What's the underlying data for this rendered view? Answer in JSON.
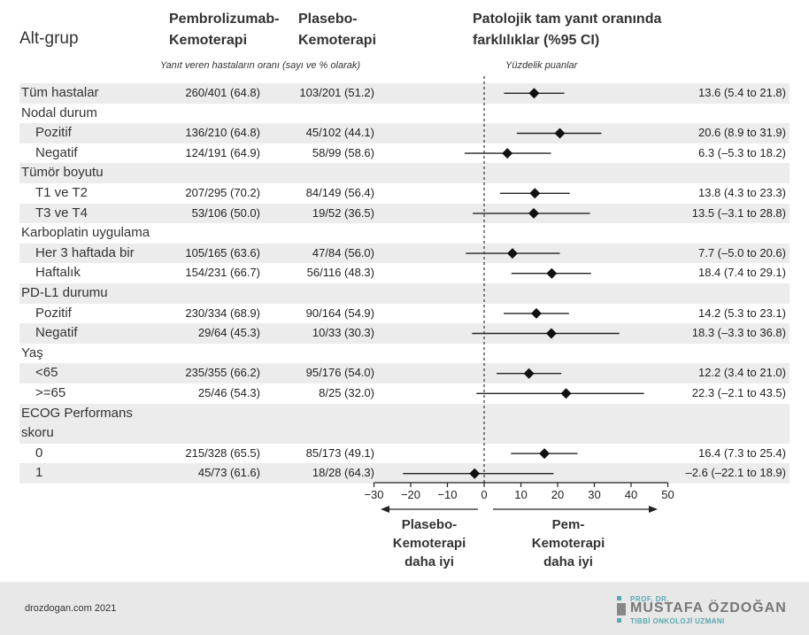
{
  "headers": {
    "subgroup": "Alt-grup",
    "pem_line1": "Pembrolizumab-",
    "pem_line2": "Kemoterapi",
    "pla_line1": "Plasebo-",
    "pla_line2": "Kemoterapi",
    "ci_line1": "Patolojik tam yanıt oranında",
    "ci_line2": "farklılıklar (%95 CI)",
    "sub_left": "Yanıt veren hastaların oranı (sayı ve % olarak)",
    "sub_right": "Yüzdelik puanlar"
  },
  "chart_data": {
    "type": "forest",
    "xlim": [
      -30,
      50
    ],
    "xticks": [
      -30,
      -20,
      -10,
      0,
      10,
      20,
      30,
      40,
      50
    ],
    "reference_line": 0,
    "rows": [
      {
        "label": "Tüm hastalar",
        "pem": "260/401 (64.8)",
        "pla": "103/201 (51.2)",
        "diff": 13.6,
        "lo": 5.4,
        "hi": 21.8,
        "ci_text": "13.6 (5.4 to 21.8)",
        "shaded": true,
        "indent": false
      },
      {
        "label": "Nodal durum",
        "header": true,
        "shaded": false,
        "indent": false
      },
      {
        "label": "Pozitif",
        "pem": "136/210 (64.8)",
        "pla": "45/102 (44.1)",
        "diff": 20.6,
        "lo": 8.9,
        "hi": 31.9,
        "ci_text": "20.6 (8.9 to 31.9)",
        "shaded": true,
        "indent": true
      },
      {
        "label": "Negatif",
        "pem": "124/191 (64.9)",
        "pla": "58/99 (58.6)",
        "diff": 6.3,
        "lo": -5.3,
        "hi": 18.2,
        "ci_text": "6.3 (–5.3 to 18.2)",
        "shaded": false,
        "indent": true
      },
      {
        "label": "Tümör boyutu",
        "header": true,
        "shaded": true,
        "indent": false
      },
      {
        "label": "T1 ve T2",
        "pem": "207/295 (70.2)",
        "pla": "84/149 (56.4)",
        "diff": 13.8,
        "lo": 4.3,
        "hi": 23.3,
        "ci_text": "13.8 (4.3 to 23.3)",
        "shaded": false,
        "indent": true
      },
      {
        "label": "T3 ve T4",
        "pem": "53/106 (50.0)",
        "pla": "19/52 (36.5)",
        "diff": 13.5,
        "lo": -3.1,
        "hi": 28.8,
        "ci_text": "13.5 (–3.1 to 28.8)",
        "shaded": true,
        "indent": true
      },
      {
        "label": "Karboplatin uygulama",
        "header": true,
        "shaded": false,
        "indent": false
      },
      {
        "label": "Her 3 haftada bir",
        "pem": "105/165 (63.6)",
        "pla": "47/84 (56.0)",
        "diff": 7.7,
        "lo": -5.0,
        "hi": 20.6,
        "ci_text": "7.7 (–5.0 to 20.6)",
        "shaded": true,
        "indent": true
      },
      {
        "label": "Haftalık",
        "pem": "154/231 (66.7)",
        "pla": "56/116 (48.3)",
        "diff": 18.4,
        "lo": 7.4,
        "hi": 29.1,
        "ci_text": "18.4 (7.4 to 29.1)",
        "shaded": false,
        "indent": true
      },
      {
        "label": "PD-L1 durumu",
        "header": true,
        "shaded": true,
        "indent": false
      },
      {
        "label": "Pozitif",
        "pem": "230/334 (68.9)",
        "pla": "90/164 (54.9)",
        "diff": 14.2,
        "lo": 5.3,
        "hi": 23.1,
        "ci_text": "14.2 (5.3 to 23.1)",
        "shaded": false,
        "indent": true
      },
      {
        "label": "Negatif",
        "pem": "29/64 (45.3)",
        "pla": "10/33 (30.3)",
        "diff": 18.3,
        "lo": -3.3,
        "hi": 36.8,
        "ci_text": "18.3 (–3.3 to 36.8)",
        "shaded": true,
        "indent": true
      },
      {
        "label": "Yaş",
        "header": true,
        "shaded": false,
        "indent": false
      },
      {
        "label": "<65",
        "pem": "235/355 (66.2)",
        "pla": "95/176 (54.0)",
        "diff": 12.2,
        "lo": 3.4,
        "hi": 21.0,
        "ci_text": "12.2 (3.4 to 21.0)",
        "shaded": true,
        "indent": true
      },
      {
        "label": ">=65",
        "pem": "25/46 (54.3)",
        "pla": "8/25 (32.0)",
        "diff": 22.3,
        "lo": -2.1,
        "hi": 43.5,
        "ci_text": "22.3 (–2.1 to 43.5)",
        "shaded": false,
        "indent": true
      },
      {
        "label": "ECOG Performans",
        "header": true,
        "shaded": true,
        "indent": false
      },
      {
        "label": "skoru",
        "header": true,
        "shaded": true,
        "indent": false
      },
      {
        "label": "0",
        "pem": "215/328 (65.5)",
        "pla": "85/173 (49.1)",
        "diff": 16.4,
        "lo": 7.3,
        "hi": 25.4,
        "ci_text": "16.4 (7.3 to 25.4)",
        "shaded": false,
        "indent": true
      },
      {
        "label": "1",
        "pem": "45/73 (61.6)",
        "pla": "18/28 (64.3)",
        "diff": -2.6,
        "lo": -22.1,
        "hi": 18.9,
        "ci_text": "–2.6 (–22.1 to 18.9)",
        "shaded": true,
        "indent": true
      }
    ]
  },
  "comparison": {
    "left_line1": "Plasebo-",
    "left_line2": "Kemoterapi",
    "left_line3": "daha iyi",
    "right_line1": "Pem-",
    "right_line2": "Kemoterapi",
    "right_line3": "daha iyi"
  },
  "footer": {
    "site": "drozdogan.com 2021",
    "logo_prof": "PROF. DR.",
    "logo_name": "MUSTAFA ÖZDOĞAN",
    "logo_tagline": "TIBBİ ONKOLOJİ UZMANI",
    "logo_color": "#5aa8b0"
  }
}
